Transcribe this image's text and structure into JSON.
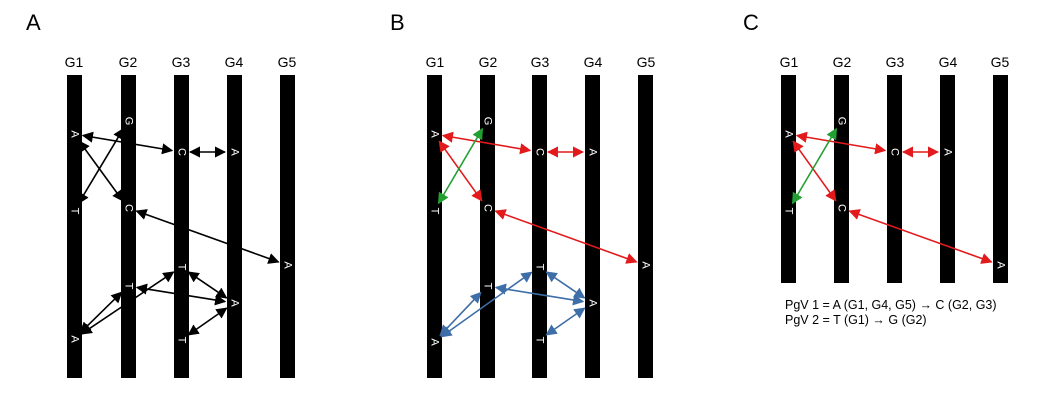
{
  "panels": [
    {
      "label": "A",
      "genomes": [
        "G1",
        "G2",
        "G3",
        "G4",
        "G5"
      ],
      "bases": [
        {
          "genome": 0,
          "text": "A"
        },
        {
          "genome": 0,
          "text": "T"
        },
        {
          "genome": 0,
          "text": "A"
        },
        {
          "genome": 1,
          "text": "G"
        },
        {
          "genome": 1,
          "text": "C"
        },
        {
          "genome": 1,
          "text": "T"
        },
        {
          "genome": 2,
          "text": "C"
        },
        {
          "genome": 2,
          "text": "T"
        },
        {
          "genome": 2,
          "text": "T"
        },
        {
          "genome": 3,
          "text": "A"
        },
        {
          "genome": 3,
          "text": "A"
        },
        {
          "genome": 4,
          "text": "A"
        }
      ],
      "links": [
        {
          "from": [
            0,
            0
          ],
          "to": [
            2,
            0
          ],
          "color": "#000000"
        },
        {
          "from": [
            2,
            0
          ],
          "to": [
            3,
            0
          ],
          "color": "#000000"
        },
        {
          "from": [
            0,
            0
          ],
          "to": [
            1,
            1
          ],
          "color": "#000000"
        },
        {
          "from": [
            0,
            1
          ],
          "to": [
            1,
            0
          ],
          "color": "#000000"
        },
        {
          "from": [
            1,
            1
          ],
          "to": [
            4,
            0
          ],
          "color": "#000000"
        },
        {
          "from": [
            0,
            2
          ],
          "to": [
            1,
            2
          ],
          "color": "#000000"
        },
        {
          "from": [
            0,
            2
          ],
          "to": [
            2,
            1
          ],
          "color": "#000000"
        },
        {
          "from": [
            1,
            2
          ],
          "to": [
            3,
            1
          ],
          "color": "#000000"
        },
        {
          "from": [
            2,
            1
          ],
          "to": [
            3,
            1
          ],
          "color": "#000000"
        },
        {
          "from": [
            2,
            2
          ],
          "to": [
            3,
            1
          ],
          "color": "#000000"
        }
      ]
    },
    {
      "label": "B",
      "genomes": [
        "G1",
        "G2",
        "G3",
        "G4",
        "G5"
      ],
      "bases": [
        {
          "genome": 0,
          "text": "A"
        },
        {
          "genome": 0,
          "text": "T"
        },
        {
          "genome": 0,
          "text": "A"
        },
        {
          "genome": 1,
          "text": "G"
        },
        {
          "genome": 1,
          "text": "C"
        },
        {
          "genome": 1,
          "text": "T"
        },
        {
          "genome": 2,
          "text": "C"
        },
        {
          "genome": 2,
          "text": "T"
        },
        {
          "genome": 2,
          "text": "T"
        },
        {
          "genome": 3,
          "text": "A"
        },
        {
          "genome": 3,
          "text": "A"
        },
        {
          "genome": 4,
          "text": "A"
        }
      ],
      "links": [
        {
          "from": [
            0,
            0
          ],
          "to": [
            2,
            0
          ],
          "color": "#e31a1c"
        },
        {
          "from": [
            2,
            0
          ],
          "to": [
            3,
            0
          ],
          "color": "#e31a1c"
        },
        {
          "from": [
            0,
            0
          ],
          "to": [
            1,
            1
          ],
          "color": "#e31a1c"
        },
        {
          "from": [
            0,
            1
          ],
          "to": [
            1,
            0
          ],
          "color": "#22a032"
        },
        {
          "from": [
            1,
            1
          ],
          "to": [
            4,
            0
          ],
          "color": "#e31a1c"
        },
        {
          "from": [
            0,
            2
          ],
          "to": [
            1,
            2
          ],
          "color": "#3e6ea8"
        },
        {
          "from": [
            0,
            2
          ],
          "to": [
            2,
            1
          ],
          "color": "#3e6ea8"
        },
        {
          "from": [
            1,
            2
          ],
          "to": [
            3,
            1
          ],
          "color": "#3e6ea8"
        },
        {
          "from": [
            2,
            1
          ],
          "to": [
            3,
            1
          ],
          "color": "#3e6ea8"
        },
        {
          "from": [
            2,
            2
          ],
          "to": [
            3,
            1
          ],
          "color": "#3e6ea8"
        }
      ]
    },
    {
      "label": "C",
      "genomes": [
        "G1",
        "G2",
        "G3",
        "G4",
        "G5"
      ],
      "bases": [
        {
          "genome": 0,
          "text": "A"
        },
        {
          "genome": 0,
          "text": "T"
        },
        {
          "genome": 1,
          "text": "G"
        },
        {
          "genome": 1,
          "text": "C"
        },
        {
          "genome": 2,
          "text": "C"
        },
        {
          "genome": 3,
          "text": "A"
        },
        {
          "genome": 4,
          "text": "A"
        }
      ],
      "links": [
        {
          "from": [
            0,
            0
          ],
          "to": [
            2,
            0
          ],
          "color": "#e31a1c"
        },
        {
          "from": [
            2,
            0
          ],
          "to": [
            3,
            0
          ],
          "color": "#e31a1c"
        },
        {
          "from": [
            0,
            0
          ],
          "to": [
            1,
            1
          ],
          "color": "#e31a1c"
        },
        {
          "from": [
            0,
            1
          ],
          "to": [
            1,
            0
          ],
          "color": "#22a032"
        },
        {
          "from": [
            1,
            1
          ],
          "to": [
            4,
            0
          ],
          "color": "#e31a1c"
        }
      ],
      "notes": [
        "PgV 1 = A (G1, G4, G5) → C (G2, G3)",
        "PgV 2 = T (G1) → G (G2)"
      ]
    }
  ]
}
